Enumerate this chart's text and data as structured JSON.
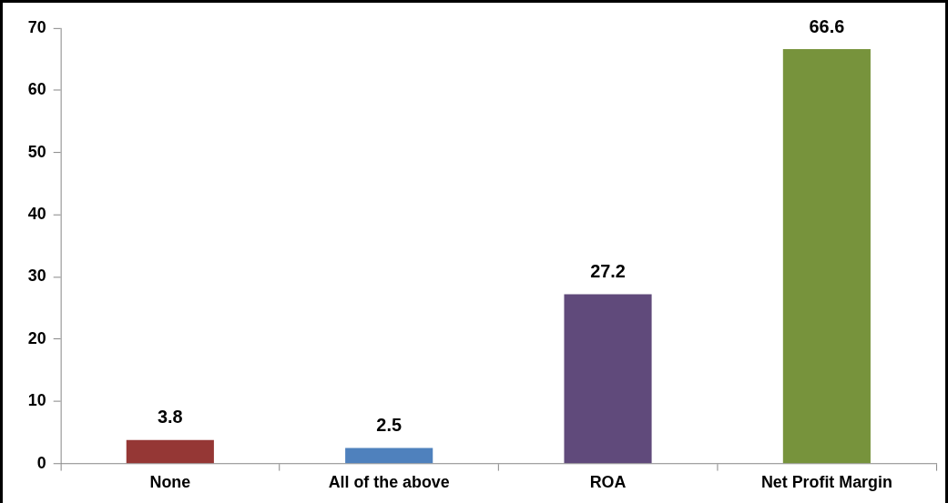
{
  "chart_data": {
    "type": "bar",
    "categories": [
      "None",
      "All of the above",
      "ROA",
      "Net Profit Margin"
    ],
    "values": [
      3.8,
      2.5,
      27.2,
      66.6
    ],
    "colors": [
      "#953735",
      "#4f81bd",
      "#604a7b",
      "#77933c"
    ],
    "ylim": [
      0,
      70
    ],
    "yticks": [
      0,
      10,
      20,
      30,
      40,
      50,
      60,
      70
    ],
    "grid": false,
    "legend": false,
    "data_labels": true
  }
}
